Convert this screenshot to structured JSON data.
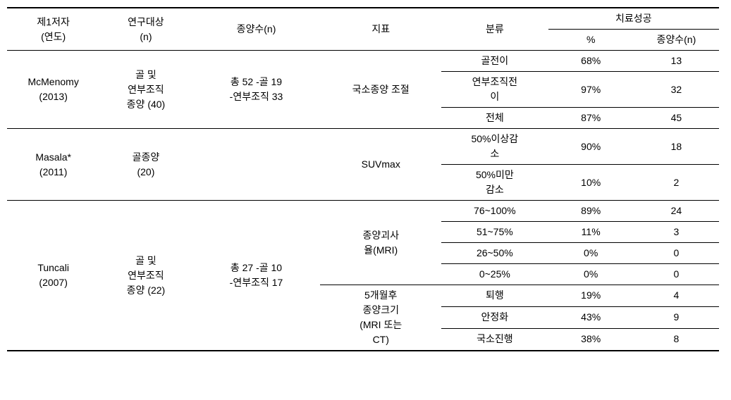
{
  "header": {
    "author": "제1저자",
    "year": "(연도)",
    "subject": "연구대상",
    "n": "(n)",
    "tumor_count": "종양수(n)",
    "indicator": "지표",
    "category": "분류",
    "success": "치료성공",
    "pct": "%",
    "tumor_n": "종양수(n)"
  },
  "row1": {
    "author": "McMenomy",
    "year": "(2013)",
    "subject_l1": "골 및",
    "subject_l2": "연부조직",
    "subject_l3": "종양 (40)",
    "tumor_l1": "총 52 -골 19",
    "tumor_l2": "-연부조직 33",
    "indicator": "국소종양 조절",
    "cat1": "골전이",
    "pct1": "68%",
    "tn1": "13",
    "cat2_l1": "연부조직전",
    "cat2_l2": "이",
    "pct2": "97%",
    "tn2": "32",
    "cat3": "전체",
    "pct3": "87%",
    "tn3": "45"
  },
  "row2": {
    "author": "Masala*",
    "year": "(2011)",
    "subject_l1": "골종양",
    "subject_l2": "(20)",
    "indicator": "SUVmax",
    "cat1_l1": "50%이상감",
    "cat1_l2": "소",
    "pct1": "90%",
    "tn1": "18",
    "cat2_l1": "50%미만",
    "cat2_l2": "감소",
    "pct2": "10%",
    "tn2": "2"
  },
  "row3": {
    "author": "Tuncali",
    "year": "(2007)",
    "subject_l1": "골 및",
    "subject_l2": "연부조직",
    "subject_l3": "종양 (22)",
    "tumor_l1": "총 27 -골 10",
    "tumor_l2": "-연부조직 17",
    "ind1_l1": "종양괴사",
    "ind1_l2": "율(MRI)",
    "cat1": "76~100%",
    "pct1": "89%",
    "tn1": "24",
    "cat2": "51~75%",
    "pct2": "11%",
    "tn2": "3",
    "cat3": "26~50%",
    "pct3": "0%",
    "tn3": "0",
    "cat4": "0~25%",
    "pct4": "0%",
    "tn4": "0",
    "ind2_l1": "5개월후",
    "ind2_l2": "종양크기",
    "ind2_l3": "(MRI 또는",
    "ind2_l4": "CT)",
    "cat5": "퇴행",
    "pct5": "19%",
    "tn5": "4",
    "cat6": "안정화",
    "pct6": "43%",
    "tn6": "9",
    "cat7": "국소진행",
    "pct7": "38%",
    "tn7": "8"
  }
}
